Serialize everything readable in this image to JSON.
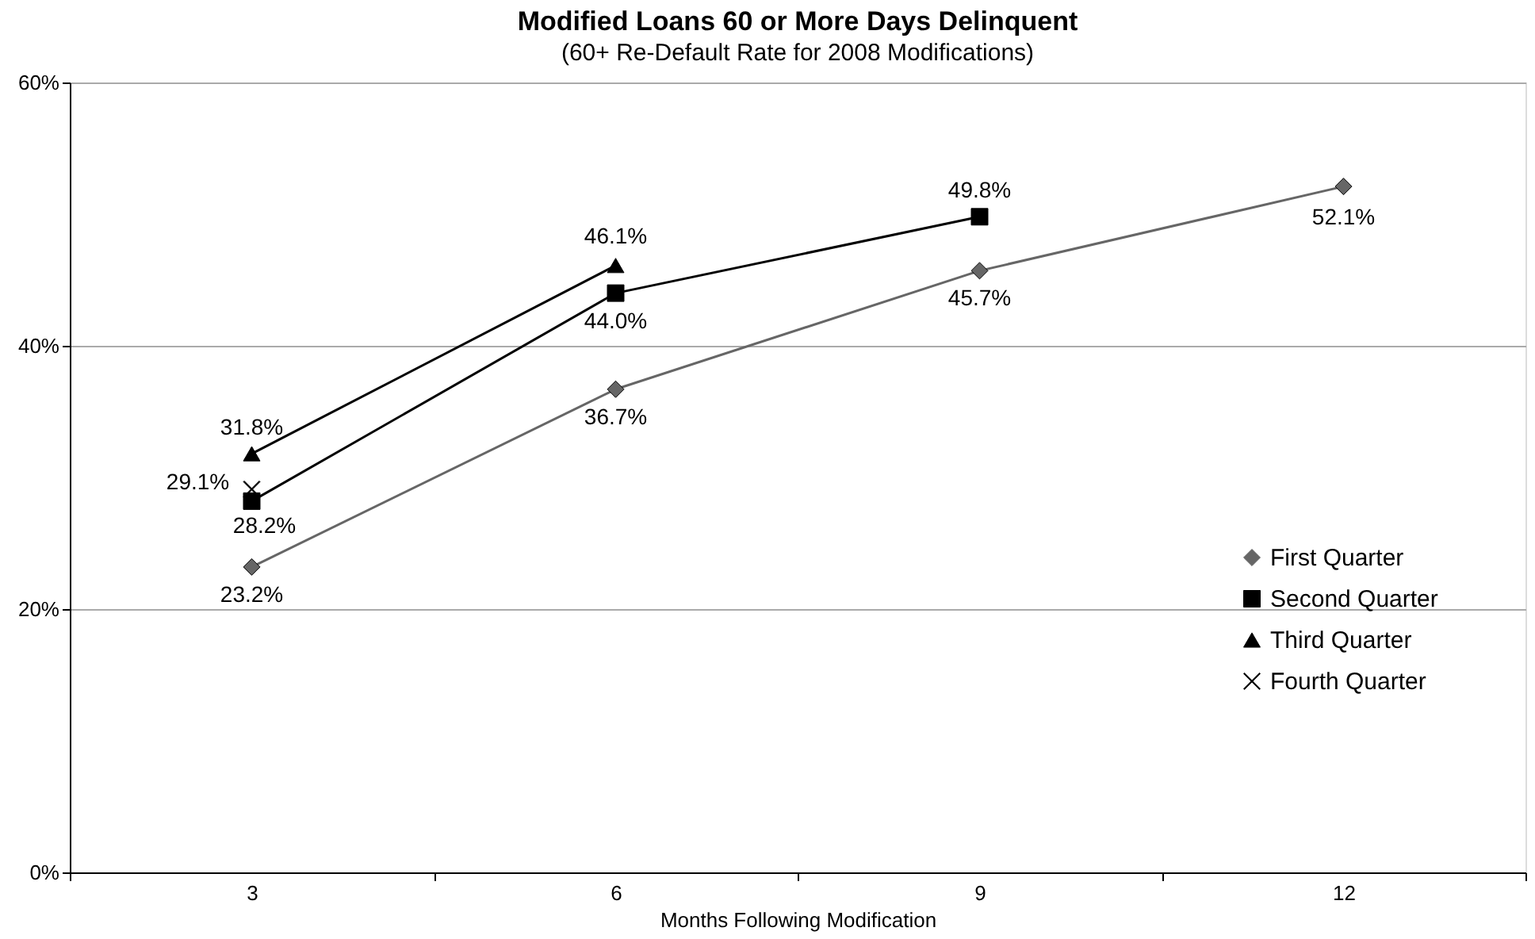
{
  "chart_data": {
    "type": "line",
    "title": "Modified Loans 60 or More Days Delinquent",
    "subtitle": "(60+ Re-Default Rate for 2008 Modifications)",
    "xlabel": "Months Following Modification",
    "categories": [
      "3",
      "6",
      "9",
      "12"
    ],
    "series": [
      {
        "name": "First Quarter",
        "color": "#666666",
        "marker": "diamond",
        "values": [
          23.2,
          36.7,
          45.7,
          52.1
        ],
        "value_labels": [
          "23.2%",
          "36.7%",
          "45.7%",
          "52.1%"
        ]
      },
      {
        "name": "Second Quarter",
        "color": "#000000",
        "marker": "square",
        "values": [
          28.2,
          44.0,
          49.8,
          null
        ],
        "value_labels": [
          "28.2%",
          "44.0%",
          "49.8%",
          null
        ]
      },
      {
        "name": "Third Quarter",
        "color": "#000000",
        "marker": "triangle",
        "values": [
          31.8,
          46.1,
          null,
          null
        ],
        "value_labels": [
          "31.8%",
          "46.1%",
          null,
          null
        ]
      },
      {
        "name": "Fourth Quarter",
        "color": "#000000",
        "marker": "cross",
        "values": [
          29.1,
          null,
          null,
          null
        ],
        "value_labels": [
          "29.1%",
          null,
          null,
          null
        ]
      }
    ],
    "ylim": [
      0,
      60
    ],
    "yticks": [
      {
        "value": 0,
        "label": "0%"
      },
      {
        "value": 20,
        "label": "20%"
      },
      {
        "value": 40,
        "label": "40%"
      },
      {
        "value": 60,
        "label": "60%"
      }
    ],
    "grid": "y",
    "legend": "bottom right",
    "line_style": "solid"
  }
}
